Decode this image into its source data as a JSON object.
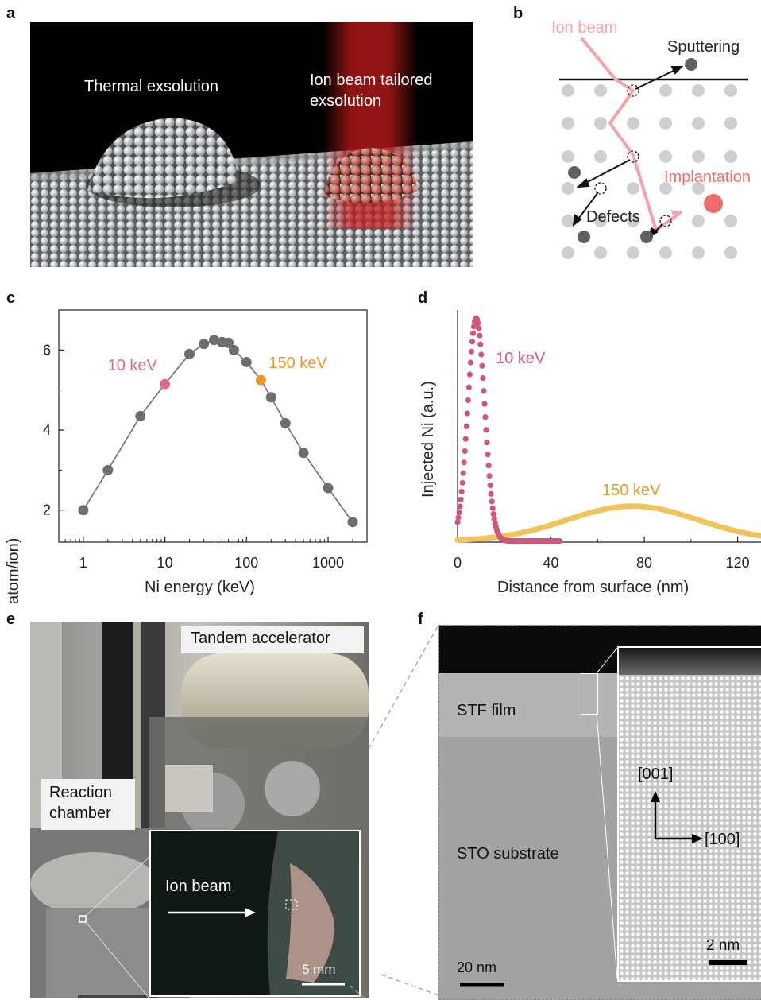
{
  "panel_labels": {
    "a": "a",
    "b": "b",
    "c": "c",
    "d": "d",
    "e": "e",
    "f": "f"
  },
  "panel_a": {
    "left_label": "Thermal exsolution",
    "right_label_line1": "Ion beam tailored",
    "right_label_line2": "exsolution",
    "colors": {
      "background": "#000000",
      "atoms": "#e6e9ea",
      "beam": "#c01a1a",
      "implanted": "#c96a5c"
    }
  },
  "panel_b": {
    "ion_beam": "Ion beam",
    "sputtering": "Sputtering",
    "implantation": "Implantation",
    "defects": "Defects",
    "colors": {
      "lattice": "#cfcfcf",
      "ion": "#f4a3a8",
      "implanted": "#ee6d6d",
      "defect": "#606060"
    }
  },
  "chart_data": [
    {
      "type": "scatter",
      "panel": "c",
      "xlabel": "Ni energy (keV)",
      "ylabel": "Sputtering yield (atom/ion)",
      "xscale": "log",
      "xlim": [
        0.5,
        3000
      ],
      "ylim": [
        1.2,
        7
      ],
      "xticks": [
        "1",
        "10",
        "100",
        "1000"
      ],
      "yticks": [
        "2",
        "4",
        "6"
      ],
      "series": [
        {
          "x": [
            1,
            2,
            5,
            10,
            20,
            30,
            40,
            50,
            60,
            70,
            100,
            150,
            200,
            300,
            500,
            1000,
            2000
          ],
          "y": [
            2.0,
            3.0,
            4.35,
            5.15,
            5.9,
            6.15,
            6.25,
            6.2,
            6.18,
            6.0,
            5.7,
            5.25,
            4.82,
            4.17,
            3.43,
            2.55,
            1.7
          ]
        }
      ],
      "highlights": [
        {
          "label": "10 keV",
          "x": 10,
          "y": 5.15,
          "color": "#e06a82"
        },
        {
          "label": "150 keV",
          "x": 150,
          "y": 5.25,
          "color": "#e8982a"
        }
      ],
      "colors": {
        "points": "#6e6e6e",
        "line": "#6e6e6e"
      }
    },
    {
      "type": "scatter",
      "panel": "d",
      "xlabel": "Distance from surface (nm)",
      "ylabel": "Injected Ni (a.u.)",
      "xlim": [
        0,
        130
      ],
      "ylim": [
        0,
        1.0
      ],
      "xticks": [
        "0",
        "40",
        "80",
        "120"
      ],
      "series": [
        {
          "name": "10 keV",
          "shape": "gaussian",
          "peak_x": 8,
          "sigma": 3.6,
          "peak_y": 0.96,
          "x_range": [
            0,
            44
          ],
          "color": "#d0567a"
        },
        {
          "name": "150 keV",
          "shape": "gaussian",
          "peak_x": 75,
          "sigma": 28,
          "peak_y": 0.15,
          "x_range": [
            0,
            130
          ],
          "color": "#f0c45c"
        }
      ]
    }
  ],
  "panel_e": {
    "tandem": "Tandem accelerator",
    "chamber_line1": "Reaction",
    "chamber_line2": "chamber",
    "inset_beam": "Ion beam",
    "inset_scale": "5 mm"
  },
  "panel_f": {
    "stf": "STF film",
    "sto": "STO substrate",
    "dir_up": "[001]",
    "dir_right": "[100]",
    "scale_main": "20 nm",
    "scale_inset": "2 nm"
  }
}
